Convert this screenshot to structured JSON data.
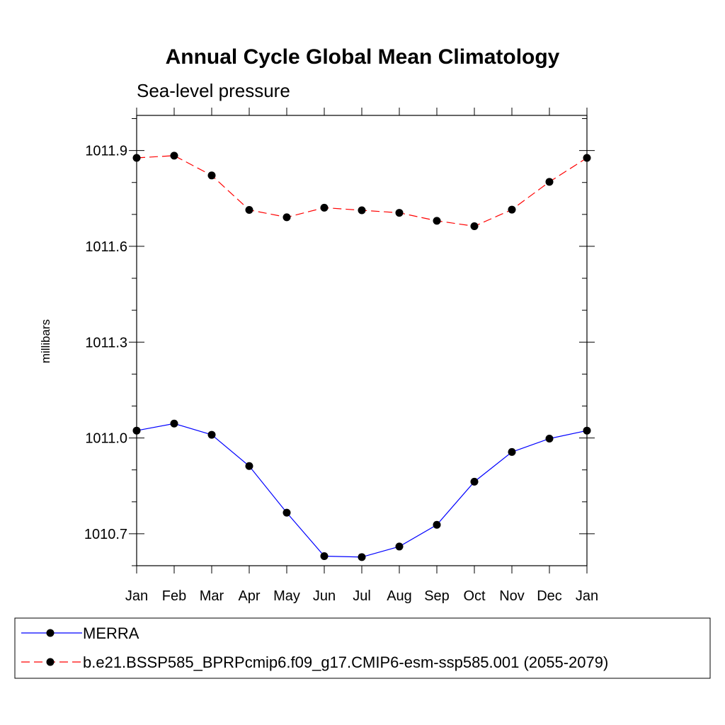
{
  "chart_data": {
    "type": "line",
    "title": "Annual Cycle Global Mean Climatology",
    "subtitle": "Sea-level pressure",
    "xlabel": "",
    "ylabel": "millibars",
    "categories": [
      "Jan",
      "Feb",
      "Mar",
      "Apr",
      "May",
      "Jun",
      "Jul",
      "Aug",
      "Sep",
      "Oct",
      "Nov",
      "Dec",
      "Jan"
    ],
    "yticks": [
      "1010.7",
      "1011.0",
      "1011.3",
      "1011.6",
      "1011.9"
    ],
    "ylim": [
      1010.6,
      1012.01
    ],
    "grid": false,
    "legend_position": "bottom",
    "series": [
      {
        "name": "MERRA",
        "color": "#0000ff",
        "dash": "solid",
        "values": [
          1011.023,
          1011.045,
          1011.01,
          1010.912,
          1010.766,
          1010.63,
          1010.627,
          1010.66,
          1010.728,
          1010.863,
          1010.956,
          1010.998,
          1011.023
        ]
      },
      {
        "name": "b.e21.BSSP585_BPRPcmip6.f09_g17.CMIP6-esm-ssp585.001 (2055-2079)",
        "color": "#ff0000",
        "dash": "dashed",
        "values": [
          1011.877,
          1011.884,
          1011.822,
          1011.714,
          1011.691,
          1011.721,
          1011.713,
          1011.705,
          1011.68,
          1011.663,
          1011.715,
          1011.802,
          1011.877
        ]
      }
    ]
  }
}
